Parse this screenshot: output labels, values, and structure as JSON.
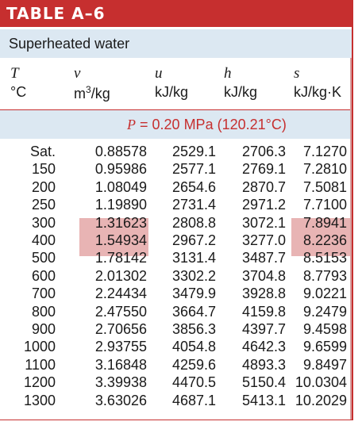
{
  "table": {
    "title": "TABLE A–6",
    "subtitle": "Superheated water",
    "headers": [
      {
        "symbol": "T",
        "unit": "°C"
      },
      {
        "symbol": "v",
        "unit": "m³/kg"
      },
      {
        "symbol": "u",
        "unit": "kJ/kg"
      },
      {
        "symbol": "h",
        "unit": "kJ/kg"
      },
      {
        "symbol": "s",
        "unit": "kJ/kg·K"
      }
    ],
    "pressure_symbol": "P",
    "pressure_value": "= 0.20 MPa (120.21°C)",
    "highlight_color": "#e8b4b4",
    "accent_color": "#c62f2f",
    "band_color": "#dce8f2",
    "rows": [
      {
        "T": "Sat.",
        "v": "0.88578",
        "u": "2529.1",
        "h": "2706.3",
        "s": "7.1270"
      },
      {
        "T": "150",
        "v": "0.95986",
        "u": "2577.1",
        "h": "2769.1",
        "s": "7.2810"
      },
      {
        "T": "200",
        "v": "1.08049",
        "u": "2654.6",
        "h": "2870.7",
        "s": "7.5081"
      },
      {
        "T": "250",
        "v": "1.19890",
        "u": "2731.4",
        "h": "2971.2",
        "s": "7.7100"
      },
      {
        "T": "300",
        "v": "1.31623",
        "u": "2808.8",
        "h": "3072.1",
        "s": "7.8941"
      },
      {
        "T": "400",
        "v": "1.54934",
        "u": "2967.2",
        "h": "3277.0",
        "s": "8.2236"
      },
      {
        "T": "500",
        "v": "1.78142",
        "u": "3131.4",
        "h": "3487.7",
        "s": "8.5153"
      },
      {
        "T": "600",
        "v": "2.01302",
        "u": "3302.2",
        "h": "3704.8",
        "s": "8.7793"
      },
      {
        "T": "700",
        "v": "2.24434",
        "u": "3479.9",
        "h": "3928.8",
        "s": "9.0221"
      },
      {
        "T": "800",
        "v": "2.47550",
        "u": "3664.7",
        "h": "4159.8",
        "s": "9.2479"
      },
      {
        "T": "900",
        "v": "2.70656",
        "u": "3856.3",
        "h": "4397.7",
        "s": "9.4598"
      },
      {
        "T": "1000",
        "v": "2.93755",
        "u": "4054.8",
        "h": "4642.3",
        "s": "9.6599"
      },
      {
        "T": "1100",
        "v": "3.16848",
        "u": "4259.6",
        "h": "4893.3",
        "s": "9.8497"
      },
      {
        "T": "1200",
        "v": "3.39938",
        "u": "4470.5",
        "h": "5150.4",
        "s": "10.0304"
      },
      {
        "T": "1300",
        "v": "3.63026",
        "u": "4687.1",
        "h": "5413.1",
        "s": "10.2029"
      }
    ]
  }
}
